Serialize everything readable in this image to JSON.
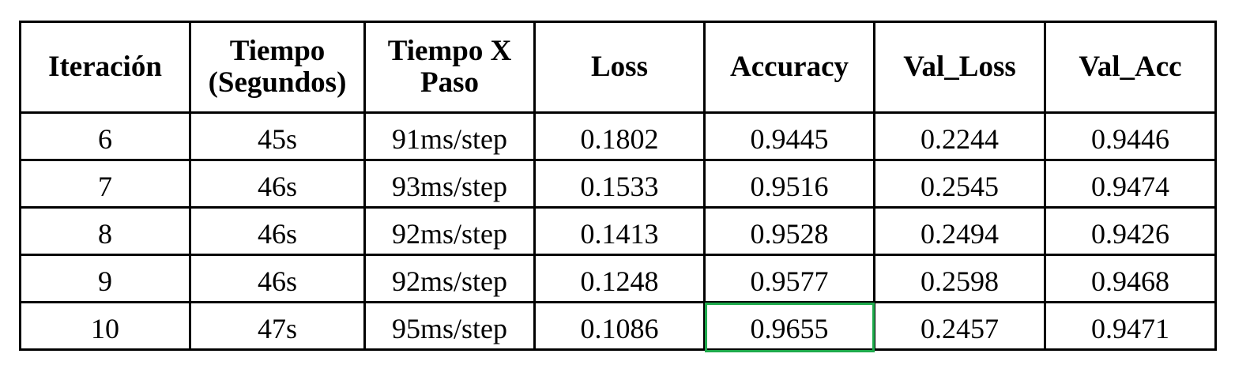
{
  "table": {
    "headers": [
      [
        "Iteración"
      ],
      [
        "Tiempo",
        "(Segundos)"
      ],
      [
        "Tiempo X",
        "Paso"
      ],
      [
        "Loss"
      ],
      [
        "Accuracy"
      ],
      [
        "Val_Loss"
      ],
      [
        "Val_Acc"
      ]
    ],
    "rows": [
      [
        "6",
        "45s",
        "91ms/step",
        "0.1802",
        "0.9445",
        "0.2244",
        "0.9446"
      ],
      [
        "7",
        "46s",
        "93ms/step",
        "0.1533",
        "0.9516",
        "0.2545",
        "0.9474"
      ],
      [
        "8",
        "46s",
        "92ms/step",
        "0.1413",
        "0.9528",
        "0.2494",
        "0.9426"
      ],
      [
        "9",
        "46s",
        "92ms/step",
        "0.1248",
        "0.9577",
        "0.2598",
        "0.9468"
      ],
      [
        "10",
        "47s",
        "95ms/step",
        "0.1086",
        "0.9655",
        "0.2457",
        "0.9471"
      ]
    ],
    "highlight": {
      "row": 4,
      "col": 4,
      "color": "#1faa4c"
    }
  }
}
